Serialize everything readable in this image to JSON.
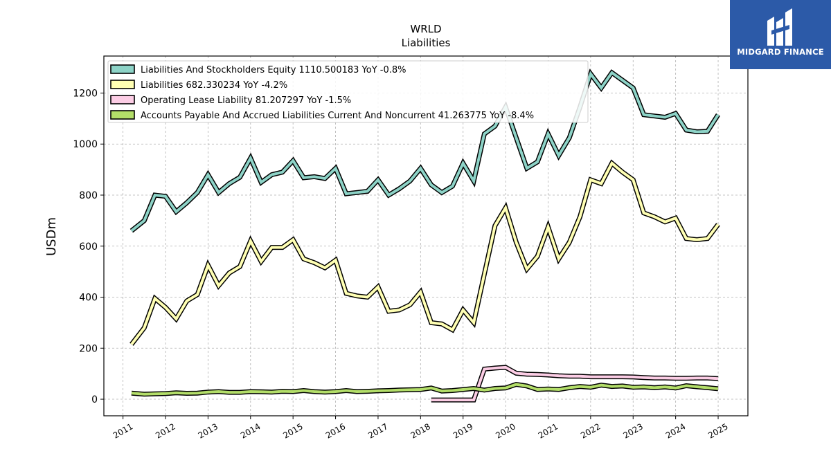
{
  "brand": {
    "name": "MIDGARD FINANCE",
    "background": "#2c5aa8"
  },
  "chart_data": {
    "type": "line",
    "title": "WRLD",
    "subtitle": "Liabilities",
    "xlabel": "",
    "ylabel": "USDm",
    "ylim": [
      -65,
      1345
    ],
    "xlim": [
      2010.55,
      2025.7
    ],
    "yticks": [
      0,
      200,
      400,
      600,
      800,
      1000,
      1200
    ],
    "xticks": [
      "2011",
      "2012",
      "2013",
      "2014",
      "2015",
      "2016",
      "2017",
      "2018",
      "2019",
      "2020",
      "2021",
      "2022",
      "2023",
      "2024",
      "2025"
    ],
    "grid": true,
    "legend_position": "top-left",
    "x": [
      2011.2,
      2011.5,
      2011.75,
      2012.0,
      2012.25,
      2012.5,
      2012.75,
      2013.0,
      2013.25,
      2013.5,
      2013.75,
      2014.0,
      2014.25,
      2014.5,
      2014.75,
      2015.0,
      2015.25,
      2015.5,
      2015.75,
      2016.0,
      2016.25,
      2016.5,
      2016.75,
      2017.0,
      2017.25,
      2017.5,
      2017.75,
      2018.0,
      2018.25,
      2018.5,
      2018.75,
      2019.0,
      2019.25,
      2019.5,
      2019.75,
      2020.0,
      2020.25,
      2020.5,
      2020.75,
      2021.0,
      2021.25,
      2021.5,
      2021.75,
      2022.0,
      2022.25,
      2022.5,
      2022.75,
      2023.0,
      2023.25,
      2023.5,
      2023.75,
      2024.0,
      2024.25,
      2024.5,
      2024.75,
      2025.0
    ],
    "series": [
      {
        "name": "Liabilities And Stockholders Equity  1110.500183 YoY -0.8%",
        "color": "#8dd3c7",
        "values": [
          660,
          700,
          800,
          795,
          735,
          770,
          810,
          880,
          810,
          845,
          870,
          945,
          850,
          880,
          890,
          935,
          868,
          872,
          865,
          905,
          805,
          810,
          815,
          860,
          800,
          825,
          855,
          905,
          840,
          810,
          835,
          925,
          855,
          1040,
          1070,
          1145,
          1025,
          905,
          930,
          1040,
          955,
          1025,
          1145,
          1275,
          1220,
          1280,
          1250,
          1220,
          1115,
          1110,
          1105,
          1120,
          1055,
          1048,
          1050,
          1115
        ],
        "values_note": ""
      },
      {
        "name": "Liabilities  682.330234 YoY -4.2%",
        "color": "#ffffb3",
        "values": [
          215,
          280,
          395,
          360,
          315,
          385,
          410,
          525,
          445,
          495,
          520,
          620,
          540,
          595,
          595,
          625,
          550,
          535,
          515,
          545,
          415,
          405,
          400,
          440,
          345,
          350,
          370,
          420,
          300,
          295,
          272,
          350,
          300,
          490,
          680,
          750,
          615,
          510,
          560,
          675,
          550,
          615,
          715,
          860,
          845,
          925,
          890,
          860,
          730,
          715,
          695,
          710,
          630,
          625,
          630,
          685
        ],
        "values_note": ""
      },
      {
        "name": "Operating Lease Liability  81.207297 YoY -1.5%",
        "color": "#fccde5",
        "values": [
          null,
          null,
          null,
          null,
          null,
          null,
          null,
          null,
          null,
          null,
          null,
          null,
          null,
          null,
          null,
          null,
          null,
          null,
          null,
          null,
          null,
          null,
          null,
          null,
          null,
          null,
          null,
          null,
          -3,
          -3,
          -3,
          -3,
          -3,
          118,
          122,
          125,
          102,
          98,
          97,
          95,
          92,
          90,
          90,
          88,
          88,
          88,
          88,
          87,
          85,
          83,
          83,
          82,
          82,
          83,
          83,
          81
        ],
        "values_note": ""
      },
      {
        "name": "Accounts Payable And Accrued Liabilities Current And Noncurrent  41.263775 YoY -8.4%",
        "color": "#b3de69",
        "values": [
          24,
          20,
          21,
          22,
          25,
          23,
          24,
          28,
          30,
          27,
          27,
          30,
          29,
          28,
          31,
          30,
          34,
          30,
          28,
          30,
          34,
          30,
          31,
          33,
          34,
          36,
          37,
          38,
          44,
          32,
          34,
          38,
          42,
          36,
          42,
          44,
          58,
          52,
          38,
          40,
          38,
          45,
          50,
          47,
          55,
          50,
          52,
          47,
          48,
          45,
          48,
          44,
          53,
          49,
          45,
          41
        ],
        "values_note": ""
      }
    ]
  }
}
